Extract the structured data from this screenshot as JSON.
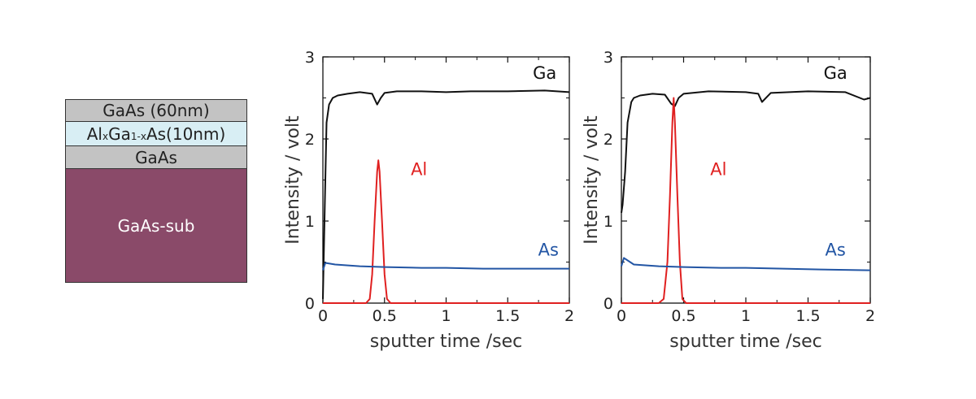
{
  "layer_stack": {
    "layers": [
      {
        "label": "GaAs (60nm)"
      },
      {
        "label_parts": [
          "Al",
          "x",
          "Ga",
          "1-x",
          "As(10nm)"
        ]
      },
      {
        "label": "GaAs"
      },
      {
        "label": "GaAs-sub"
      }
    ]
  },
  "chart_data": [
    {
      "type": "line",
      "xlabel": "sputter time /sec",
      "ylabel": "Intensity / volt",
      "xlim": [
        0,
        2
      ],
      "ylim": [
        0,
        3
      ],
      "xticks": [
        "0",
        "0.5",
        "1",
        "1.5",
        "2"
      ],
      "yticks": [
        "0",
        "1",
        "2",
        "3"
      ],
      "series": [
        {
          "name": "Ga",
          "color": "#111111",
          "x": [
            0,
            0.02,
            0.03,
            0.05,
            0.08,
            0.12,
            0.2,
            0.3,
            0.4,
            0.44,
            0.47,
            0.5,
            0.6,
            0.8,
            1.0,
            1.2,
            1.5,
            1.8,
            2.0
          ],
          "y": [
            0.05,
            1.5,
            2.2,
            2.42,
            2.5,
            2.53,
            2.55,
            2.57,
            2.55,
            2.42,
            2.5,
            2.56,
            2.58,
            2.58,
            2.57,
            2.58,
            2.58,
            2.59,
            2.57
          ]
        },
        {
          "name": "Al",
          "color": "#e02020",
          "x": [
            0,
            0.35,
            0.38,
            0.4,
            0.42,
            0.44,
            0.45,
            0.46,
            0.48,
            0.5,
            0.52,
            0.55,
            2.0
          ],
          "y": [
            0.0,
            0.0,
            0.05,
            0.35,
            1.0,
            1.6,
            1.74,
            1.6,
            1.0,
            0.35,
            0.05,
            0.0,
            0.0
          ]
        },
        {
          "name": "As",
          "color": "#2255a4",
          "x": [
            0,
            0.02,
            0.1,
            0.3,
            0.5,
            0.8,
            1.0,
            1.3,
            1.6,
            2.0
          ],
          "y": [
            0.4,
            0.49,
            0.47,
            0.45,
            0.44,
            0.43,
            0.43,
            0.42,
            0.42,
            0.42
          ]
        }
      ],
      "annotations": [
        {
          "text": "Ga",
          "x": 1.8,
          "y": 2.8
        },
        {
          "text": "Al",
          "x": 0.78,
          "y": 1.63
        },
        {
          "text": "As",
          "x": 1.83,
          "y": 0.65
        }
      ]
    },
    {
      "type": "line",
      "xlabel": "sputter time /sec",
      "ylabel": "Intensity / volt",
      "xlim": [
        0,
        2
      ],
      "ylim": [
        0,
        3
      ],
      "xticks": [
        "0",
        "0.5",
        "1",
        "1.5",
        "2"
      ],
      "yticks": [
        "0",
        "1",
        "2",
        "3"
      ],
      "series": [
        {
          "name": "Ga",
          "color": "#111111",
          "x": [
            0,
            0.01,
            0.03,
            0.05,
            0.08,
            0.1,
            0.15,
            0.25,
            0.35,
            0.4,
            0.43,
            0.46,
            0.5,
            0.7,
            1.0,
            1.1,
            1.13,
            1.2,
            1.5,
            1.8,
            1.95,
            2.0
          ],
          "y": [
            1.1,
            1.2,
            1.6,
            2.2,
            2.45,
            2.5,
            2.53,
            2.55,
            2.54,
            2.43,
            2.4,
            2.5,
            2.55,
            2.58,
            2.57,
            2.55,
            2.45,
            2.56,
            2.58,
            2.57,
            2.48,
            2.5
          ]
        },
        {
          "name": "Al",
          "color": "#e02020",
          "x": [
            0,
            0.3,
            0.34,
            0.37,
            0.39,
            0.41,
            0.42,
            0.43,
            0.45,
            0.47,
            0.49,
            0.52,
            2.0
          ],
          "y": [
            0.0,
            0.0,
            0.05,
            0.5,
            1.3,
            2.2,
            2.5,
            2.2,
            1.3,
            0.5,
            0.05,
            0.0,
            0.0
          ]
        },
        {
          "name": "As",
          "color": "#2255a4",
          "x": [
            0,
            0.02,
            0.1,
            0.3,
            0.5,
            0.8,
            1.0,
            1.3,
            1.6,
            2.0
          ],
          "y": [
            0.45,
            0.55,
            0.47,
            0.45,
            0.44,
            0.43,
            0.43,
            0.42,
            0.41,
            0.4
          ]
        }
      ],
      "annotations": [
        {
          "text": "Ga",
          "x": 1.72,
          "y": 2.8
        },
        {
          "text": "Al",
          "x": 0.78,
          "y": 1.63
        },
        {
          "text": "As",
          "x": 1.72,
          "y": 0.65
        }
      ]
    }
  ]
}
